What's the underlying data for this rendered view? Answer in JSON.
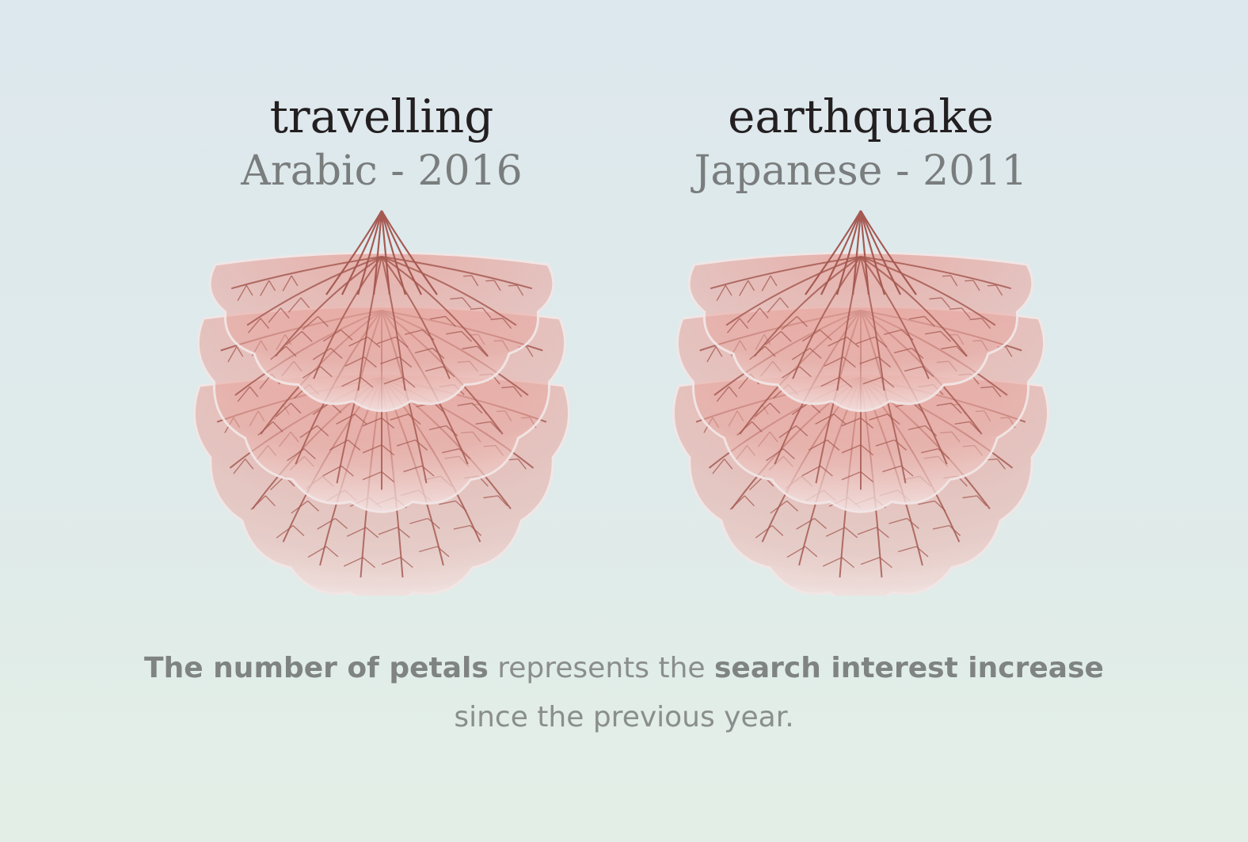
{
  "flowers": [
    {
      "word": "travelling",
      "language_year": "Arabic - 2016"
    },
    {
      "word": "earthquake",
      "language_year": "Japanese - 2011"
    }
  ],
  "caption": {
    "bold_1": "The number of petals",
    "plain_1": " represents the ",
    "bold_2": "search interest increase",
    "line_2": "since the previous year."
  },
  "colors": {
    "petal_light": "#f3e4e3",
    "petal_deep": "#e8aaa3",
    "vein": "#a65a52",
    "title": "#231f20",
    "subtitle": "#7a7d7d",
    "caption": "#8a8e8d"
  }
}
